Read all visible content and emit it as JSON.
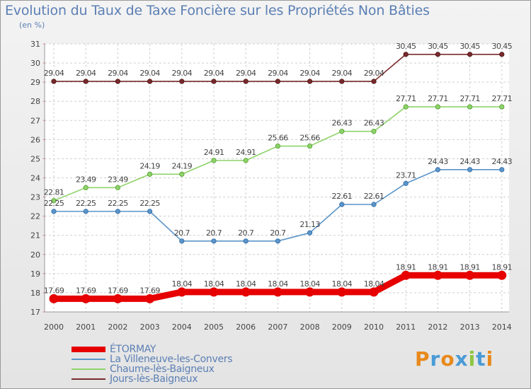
{
  "header": {
    "title": "Evolution du Taux de Taxe Foncière sur les Propriétés Non Bâties",
    "subtitle": "(en %)"
  },
  "logo": {
    "text": "Proxiti",
    "colors": [
      "#e8891c",
      "#4a9bd6",
      "#e8891c",
      "#4a9bd6",
      "#8dc63f",
      "#4a9bd6",
      "#e8891c"
    ]
  },
  "chart_data": {
    "type": "line",
    "title": "Evolution du Taux de Taxe Foncière sur les Propriétés Non Bâties",
    "ylabel": "(en %)",
    "x": [
      "2000",
      "2001",
      "2002",
      "2003",
      "2004",
      "2005",
      "2006",
      "2007",
      "2008",
      "2009",
      "2010",
      "2011",
      "2012",
      "2013",
      "2014"
    ],
    "ylim": [
      17,
      31
    ],
    "yticks": [
      "17",
      "18",
      "19",
      "20",
      "21",
      "22",
      "23",
      "24",
      "25",
      "26",
      "27",
      "28",
      "29",
      "30",
      "31"
    ],
    "grid": true,
    "legend_position": "bottom-left",
    "series": [
      {
        "name": "ÉTORMAY",
        "color": "#e60000",
        "values": [
          17.69,
          17.69,
          17.69,
          17.69,
          18.04,
          18.04,
          18.04,
          18.04,
          18.04,
          18.04,
          18.04,
          18.91,
          18.91,
          18.91,
          18.91
        ],
        "labels": [
          "17.69",
          "17.69",
          "17.69",
          "17.69",
          "18.04",
          "18.04",
          "18.04",
          "18.04",
          "18.04",
          "18.04",
          "18.04",
          "18.91",
          "18.91",
          "18.91",
          "18.91"
        ]
      },
      {
        "name": "La Villeneuve-les-Convers",
        "color": "#5b95c9",
        "values": [
          22.25,
          22.25,
          22.25,
          22.25,
          20.7,
          20.7,
          20.7,
          20.7,
          21.13,
          22.61,
          22.61,
          23.71,
          24.43,
          24.43,
          24.43
        ],
        "labels": [
          "22.25",
          "22.25",
          "22.25",
          "22.25",
          "20.7",
          "20.7",
          "20.7",
          "20.7",
          "21.13",
          "22.61",
          "22.61",
          "23.71",
          "24.43",
          "24.43",
          "24.43"
        ]
      },
      {
        "name": "Chaume-lès-Baigneux",
        "color": "#8ed36a",
        "values": [
          22.81,
          23.49,
          23.49,
          24.19,
          24.19,
          24.91,
          24.91,
          25.66,
          25.66,
          26.43,
          26.43,
          27.71,
          27.71,
          27.71,
          27.71
        ],
        "labels": [
          "22.81",
          "23.49",
          "23.49",
          "24.19",
          "24.19",
          "24.91",
          "24.91",
          "25.66",
          "25.66",
          "26.43",
          "26.43",
          "27.71",
          "27.71",
          "27.71",
          "27.71"
        ]
      },
      {
        "name": "Jours-lès-Baigneux",
        "color": "#7a2b2b",
        "values": [
          29.04,
          29.04,
          29.04,
          29.04,
          29.04,
          29.04,
          29.04,
          29.04,
          29.04,
          29.04,
          29.04,
          30.45,
          30.45,
          30.45,
          30.45
        ],
        "labels": [
          "29.04",
          "29.04",
          "29.04",
          "29.04",
          "29.04",
          "29.04",
          "29.04",
          "29.04",
          "29.04",
          "29.04",
          "29.04",
          "30.45",
          "30.45",
          "30.45",
          "30.45"
        ]
      }
    ]
  }
}
